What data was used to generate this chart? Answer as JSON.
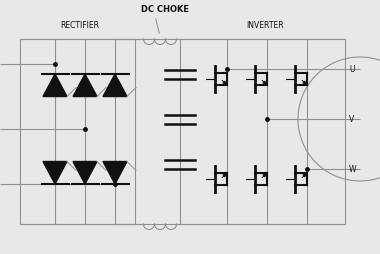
{
  "bg_color": "#e8e8e8",
  "line_color": "#909090",
  "dark_color": "#111111",
  "text_color": "#111111",
  "figsize": [
    3.8,
    2.54
  ],
  "dpi": 100,
  "label_rectifier": "RECTIFIER",
  "label_inverter": "INVERTER",
  "label_dc_choke": "DC CHOKE",
  "label_u": "U",
  "label_v": "V",
  "label_w": "W",
  "xlim": [
    0,
    38
  ],
  "ylim": [
    0,
    25.4
  ]
}
